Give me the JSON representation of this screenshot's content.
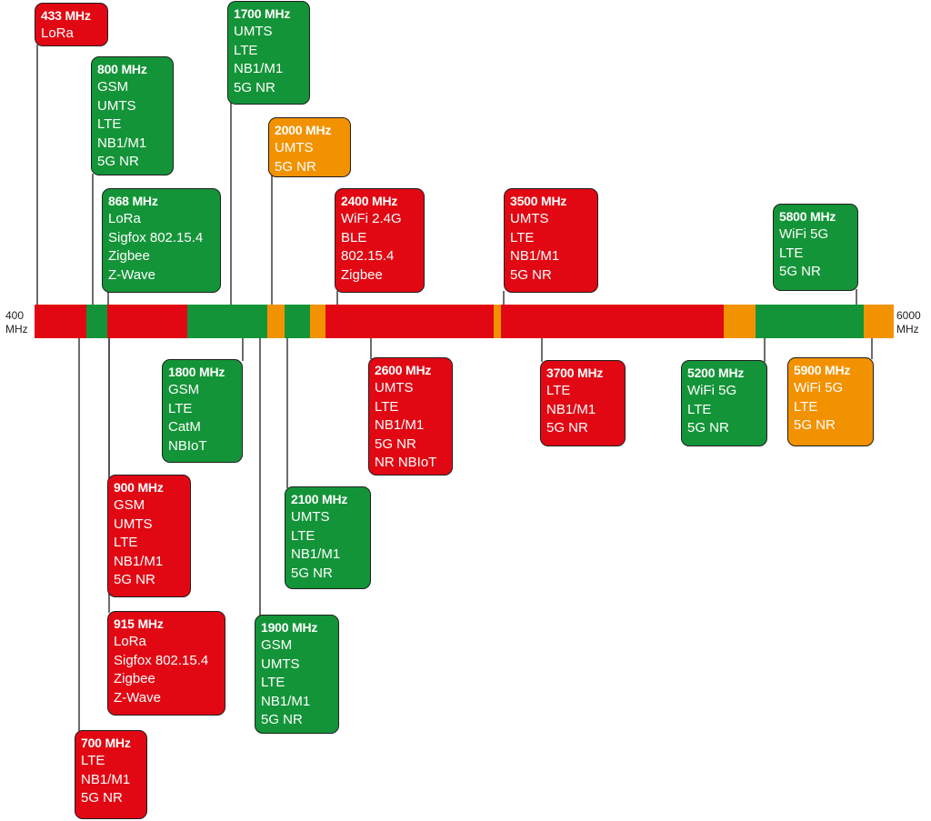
{
  "axis": {
    "start": {
      "value": "400",
      "unit": "MHz"
    },
    "end": {
      "value": "6000",
      "unit": "MHz"
    }
  },
  "colors": {
    "red": "#e10813",
    "green": "#149438",
    "orange": "#f39200"
  },
  "bands": [
    {
      "freq": "433 MHz",
      "services": [
        "LoRa"
      ],
      "color": "red"
    },
    {
      "freq": "800 MHz",
      "services": [
        "GSM",
        "UMTS",
        "LTE",
        "NB1/M1",
        "5G NR"
      ],
      "color": "green"
    },
    {
      "freq": "1700 MHz",
      "services": [
        "UMTS",
        "LTE",
        "NB1/M1",
        "5G NR"
      ],
      "color": "green"
    },
    {
      "freq": "2000 MHz",
      "services": [
        "UMTS",
        "5G NR"
      ],
      "color": "orange"
    },
    {
      "freq": "868 MHz",
      "services": [
        "LoRa",
        "Sigfox 802.15.4",
        "Zigbee",
        "Z-Wave"
      ],
      "color": "green"
    },
    {
      "freq": "2400 MHz",
      "services": [
        "WiFi 2.4G",
        "BLE",
        "802.15.4",
        "Zigbee"
      ],
      "color": "red"
    },
    {
      "freq": "3500 MHz",
      "services": [
        "UMTS",
        "LTE",
        "NB1/M1",
        "5G NR"
      ],
      "color": "red"
    },
    {
      "freq": "5800 MHz",
      "services": [
        "WiFi 5G",
        "LTE",
        "5G NR"
      ],
      "color": "green"
    },
    {
      "freq": "1800 MHz",
      "services": [
        "GSM",
        "LTE",
        "CatM",
        "NBIoT"
      ],
      "color": "green"
    },
    {
      "freq": "2600 MHz",
      "services": [
        "UMTS",
        "LTE",
        "NB1/M1",
        "5G NR",
        "NR NBIoT"
      ],
      "color": "red"
    },
    {
      "freq": "3700 MHz",
      "services": [
        "LTE",
        "NB1/M1",
        "5G NR"
      ],
      "color": "red"
    },
    {
      "freq": "5200 MHz",
      "services": [
        "WiFi 5G",
        "LTE",
        "5G NR"
      ],
      "color": "green"
    },
    {
      "freq": "5900 MHz",
      "services": [
        "WiFi 5G",
        "LTE",
        "5G NR"
      ],
      "color": "orange"
    },
    {
      "freq": "900 MHz",
      "services": [
        "GSM",
        "UMTS",
        "LTE",
        "NB1/M1",
        "5G NR"
      ],
      "color": "red"
    },
    {
      "freq": "2100 MHz",
      "services": [
        "UMTS",
        "LTE",
        "NB1/M1",
        "5G NR"
      ],
      "color": "green"
    },
    {
      "freq": "915 MHz",
      "services": [
        "LoRa",
        "Sigfox 802.15.4",
        "Zigbee",
        "Z-Wave"
      ],
      "color": "red"
    },
    {
      "freq": "1900 MHz",
      "services": [
        "GSM",
        "UMTS",
        "LTE",
        "NB1/M1",
        "5G NR"
      ],
      "color": "green"
    },
    {
      "freq": "700 MHz",
      "services": [
        "LTE",
        "NB1/M1",
        "5G NR"
      ],
      "color": "red"
    }
  ],
  "spectrum_segments": [
    "red",
    "green",
    "red",
    "green",
    "orange",
    "green",
    "orange",
    "red",
    "orange",
    "red",
    "orange",
    "green",
    "orange"
  ]
}
